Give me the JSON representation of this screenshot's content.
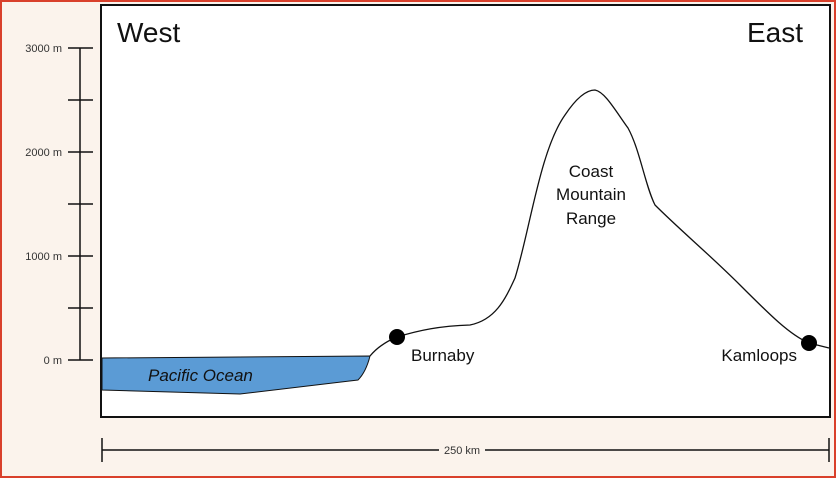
{
  "directions": {
    "west": "West",
    "east": "East"
  },
  "elevation_scale": {
    "ticks": [
      "3000 m",
      "2000 m",
      "1000 m",
      "0 m"
    ]
  },
  "places": {
    "burnaby": "Burnaby",
    "kamloops": "Kamloops",
    "ocean": "Pacific Ocean",
    "range_line1": "Coast",
    "range_line2": "Mountain",
    "range_line3": "Range"
  },
  "distance_scale": {
    "label": "250 km"
  },
  "colors": {
    "ocean_fill": "#5b9bd5",
    "frame_border": "#d9402b",
    "frame_background": "#fbf3ec"
  }
}
